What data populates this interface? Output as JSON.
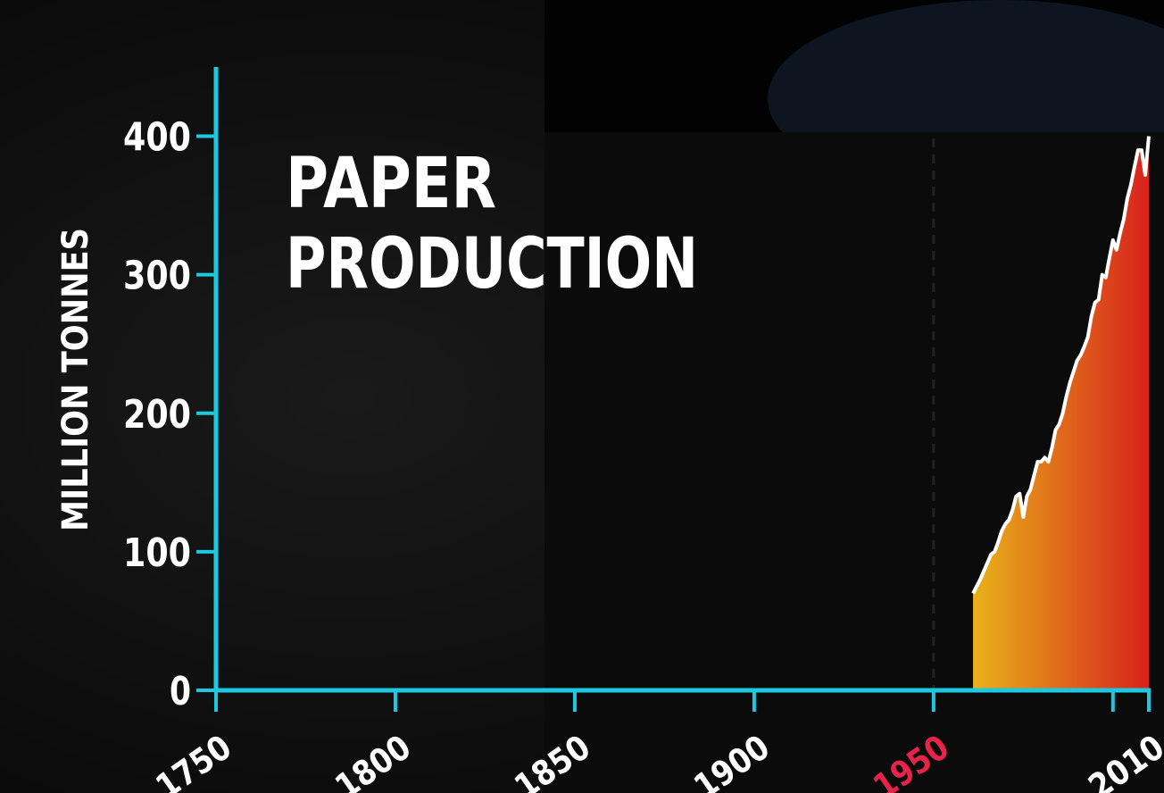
{
  "chart_data": {
    "type": "area",
    "title": [
      "PAPER",
      "PRODUCTION"
    ],
    "y_label": "MILLION TONNES",
    "color": "#ffffff",
    "fill_colors": [
      "#e8b21a",
      "#d8221c"
    ],
    "axis_color": "#1ec8e0",
    "reference_line": {
      "x": 1950,
      "color": "#e8234a"
    },
    "xlim": [
      1750,
      2010
    ],
    "xticks": [
      1750,
      1800,
      1850,
      1900,
      1950,
      2010
    ],
    "xminorticks": [
      2000
    ],
    "ylim": [
      0,
      450
    ],
    "yticks": [
      0,
      100,
      200,
      300,
      400
    ],
    "x": [
      1961,
      1962,
      1963,
      1964,
      1965,
      1966,
      1967,
      1968,
      1969,
      1970,
      1971,
      1972,
      1973,
      1974,
      1975,
      1976,
      1977,
      1978,
      1979,
      1980,
      1981,
      1982,
      1983,
      1984,
      1985,
      1986,
      1987,
      1988,
      1989,
      1990,
      1991,
      1992,
      1993,
      1994,
      1995,
      1996,
      1997,
      1998,
      1999,
      2000,
      2001,
      2002,
      2003,
      2004,
      2005,
      2006,
      2007,
      2008,
      2009,
      2010
    ],
    "values": [
      70,
      75,
      80,
      86,
      92,
      98,
      100,
      107,
      115,
      120,
      123,
      130,
      140,
      142,
      125,
      140,
      145,
      155,
      165,
      165,
      168,
      165,
      175,
      188,
      192,
      200,
      212,
      222,
      230,
      238,
      242,
      248,
      255,
      270,
      280,
      282,
      300,
      298,
      312,
      325,
      318,
      330,
      340,
      355,
      365,
      378,
      390,
      390,
      372,
      400
    ]
  }
}
